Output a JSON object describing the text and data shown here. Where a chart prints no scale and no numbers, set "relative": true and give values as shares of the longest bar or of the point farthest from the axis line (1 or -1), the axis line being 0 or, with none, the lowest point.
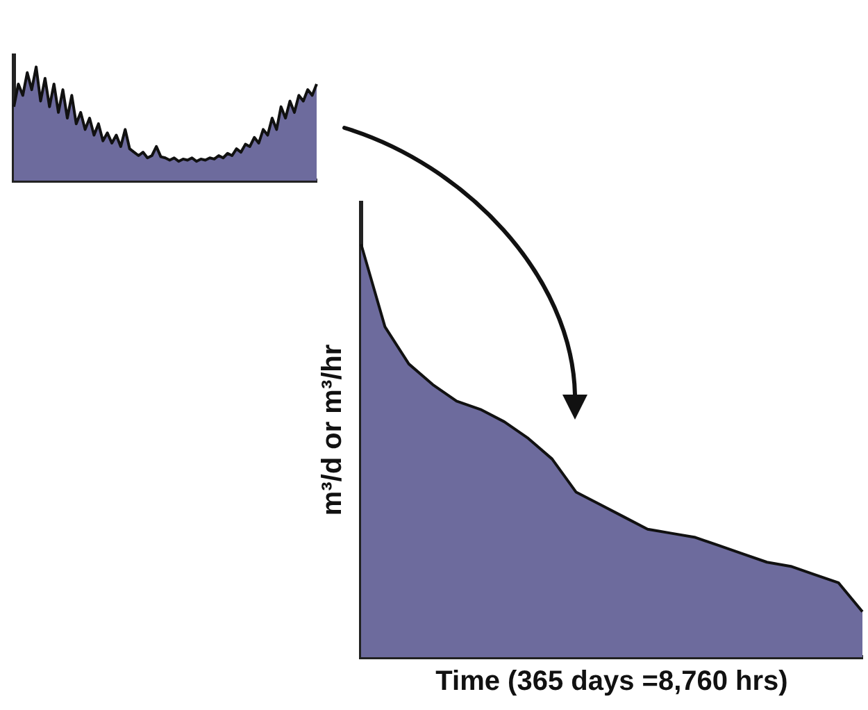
{
  "chart_data": [
    {
      "type": "area",
      "relative": true,
      "categories": [
        null,
        null,
        null,
        null,
        null,
        null,
        null,
        null,
        null,
        null,
        null,
        null,
        null,
        null,
        null,
        null,
        null,
        null,
        null,
        null,
        null,
        null,
        null,
        null,
        null,
        null,
        null,
        null,
        null,
        null,
        null,
        null,
        null,
        null,
        null,
        null,
        null,
        null,
        null,
        null,
        null,
        null,
        null,
        null,
        null,
        null,
        null,
        null,
        null,
        null,
        null,
        null,
        null,
        null,
        null,
        null,
        null,
        null,
        null,
        null,
        null,
        null,
        null,
        null,
        null,
        null,
        null,
        null,
        null
      ],
      "series": [
        {
          "color": "#6d6b9d",
          "values": [
            0.65,
            0.85,
            0.75,
            0.95,
            0.8,
            1.0,
            0.7,
            0.9,
            0.65,
            0.85,
            0.6,
            0.8,
            0.55,
            0.75,
            0.5,
            0.6,
            0.45,
            0.55,
            0.4,
            0.5,
            0.35,
            0.42,
            0.33,
            0.4,
            0.3,
            0.45,
            0.28,
            0.25,
            0.22,
            0.25,
            0.2,
            0.22,
            0.3,
            0.21,
            0.2,
            0.18,
            0.2,
            0.17,
            0.19,
            0.18,
            0.2,
            0.17,
            0.19,
            0.18,
            0.2,
            0.19,
            0.22,
            0.2,
            0.24,
            0.22,
            0.28,
            0.25,
            0.32,
            0.3,
            0.38,
            0.33,
            0.45,
            0.4,
            0.55,
            0.45,
            0.65,
            0.55,
            0.7,
            0.6,
            0.75,
            0.7,
            0.8,
            0.75,
            0.85
          ]
        }
      ],
      "grid": false,
      "legend": false
    },
    {
      "type": "area",
      "relative": true,
      "xlabel": "Time (365 days =8,760 hrs)",
      "ylabel": "m³/d or m³/hr",
      "categories": [
        null,
        null,
        null,
        null,
        null,
        null,
        null,
        null,
        null,
        null,
        null,
        null,
        null,
        null,
        null,
        null,
        null,
        null,
        null,
        null,
        null,
        null
      ],
      "series": [
        {
          "color": "#6d6b9d",
          "values": [
            1.0,
            0.8,
            0.71,
            0.66,
            0.62,
            0.6,
            0.57,
            0.53,
            0.48,
            0.4,
            0.37,
            0.34,
            0.31,
            0.3,
            0.29,
            0.27,
            0.25,
            0.23,
            0.22,
            0.2,
            0.18,
            0.11
          ]
        }
      ],
      "grid": false,
      "legend": false
    }
  ]
}
